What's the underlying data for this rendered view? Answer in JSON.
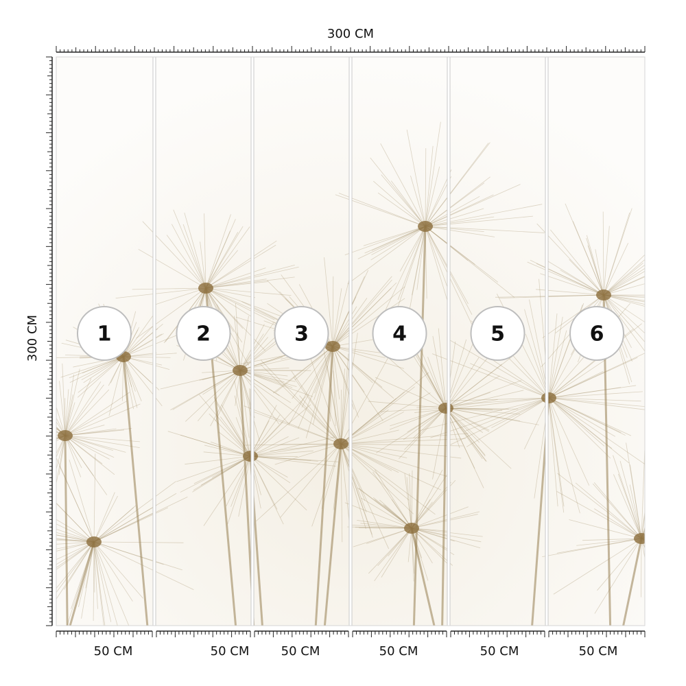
{
  "top_ruler": {
    "label": "300 CM"
  },
  "side_ruler": {
    "label": "300 CM"
  },
  "panels": [
    {
      "number": "1",
      "width_label": "50 CM"
    },
    {
      "number": "2",
      "width_label": "50 CM"
    },
    {
      "number": "3",
      "width_label": "50 CM"
    },
    {
      "number": "4",
      "width_label": "50 CM"
    },
    {
      "number": "5",
      "width_label": "50 CM"
    },
    {
      "number": "6",
      "width_label": "50 CM"
    }
  ]
}
